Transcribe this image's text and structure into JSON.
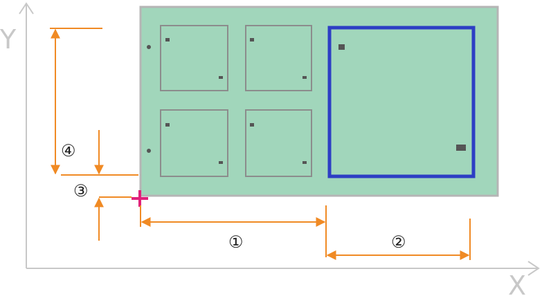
{
  "axes": {
    "x_label": "X",
    "y_label": "Y"
  },
  "dimensions": [
    {
      "id": "1",
      "symbol": "①"
    },
    {
      "id": "2",
      "symbol": "②"
    },
    {
      "id": "3",
      "symbol": "③"
    },
    {
      "id": "4",
      "symbol": "④"
    }
  ],
  "colors": {
    "panel_fill": "#a1d6bb",
    "panel_border": "#b5b5b5",
    "pcb_border": "#8c8c8c",
    "highlight_border": "#2d3ec4",
    "dimension": "#f08a24",
    "origin_mark": "#e0207a",
    "axis": "#c8c8c8"
  },
  "panel": {
    "small_boards": 4,
    "highlighted_boards": 1
  }
}
